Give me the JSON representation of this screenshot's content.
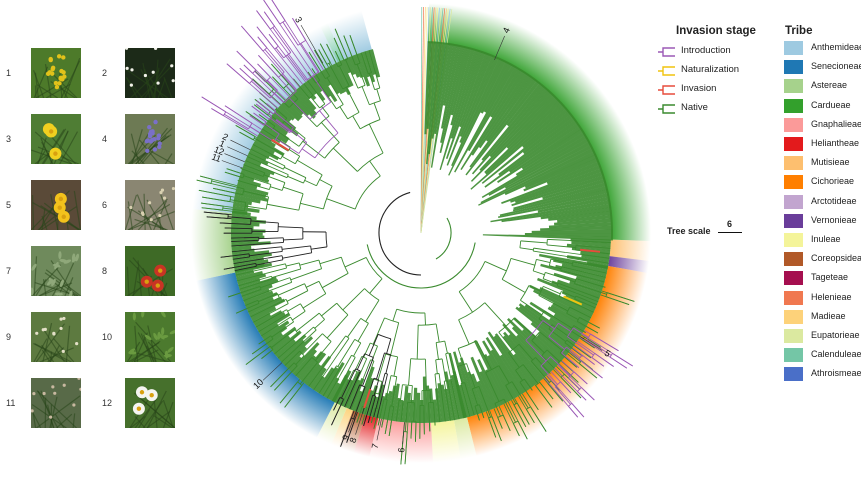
{
  "photos": [
    {
      "num": "1",
      "bg": "#4d7a2a",
      "flower": "#e2c21a",
      "kind": "spike"
    },
    {
      "num": "2",
      "bg": "#1c2a18",
      "flower": "#f2f2ea",
      "kind": "small"
    },
    {
      "num": "3",
      "bg": "#4f7d34",
      "flower": "#f0d020",
      "kind": "daisy"
    },
    {
      "num": "4",
      "bg": "#6d7a54",
      "flower": "#7a70c8",
      "kind": "spike"
    },
    {
      "num": "5",
      "bg": "#5a4a38",
      "flower": "#f2c21c",
      "kind": "daisy"
    },
    {
      "num": "6",
      "bg": "#8a8672",
      "flower": "#d8d0b0",
      "kind": "small"
    },
    {
      "num": "7",
      "bg": "#6f8a5c",
      "flower": "#8fa87a",
      "kind": "leaf"
    },
    {
      "num": "8",
      "bg": "#3e6a26",
      "flower": "#c83424",
      "kind": "daisy"
    },
    {
      "num": "9",
      "bg": "#5d7a40",
      "flower": "#e4e0c8",
      "kind": "small"
    },
    {
      "num": "10",
      "bg": "#4c7a2e",
      "flower": "#6a9a40",
      "kind": "leaf"
    },
    {
      "num": "11",
      "bg": "#586a48",
      "flower": "#c8b8a0",
      "kind": "small"
    },
    {
      "num": "12",
      "bg": "#46702c",
      "flower": "#f4f4f0",
      "kind": "daisy"
    }
  ],
  "tree_labels": [
    "4",
    "3",
    "2",
    "1",
    "12",
    "11",
    "5",
    "10",
    "9",
    "8",
    "7",
    "6"
  ],
  "invasion_legend": {
    "title": "Invasion stage",
    "items": [
      {
        "label": "Introduction",
        "color": "#9b59b6"
      },
      {
        "label": "Naturalization",
        "color": "#f1c40f"
      },
      {
        "label": "Invasion",
        "color": "#e74c3c"
      },
      {
        "label": "Native",
        "color": "#3a8a2e"
      }
    ]
  },
  "tribe_legend": {
    "title": "Tribe",
    "items": [
      {
        "label": "Anthemideae",
        "color": "#9ecae1"
      },
      {
        "label": "Senecioneae",
        "color": "#1f78b4"
      },
      {
        "label": "Astereae",
        "color": "#a6d28c"
      },
      {
        "label": "Cardueae",
        "color": "#33a02c"
      },
      {
        "label": "Gnaphalieae",
        "color": "#fb9a99"
      },
      {
        "label": "Heliantheae",
        "color": "#e31a1c"
      },
      {
        "label": "Mutisieae",
        "color": "#fdbf6f"
      },
      {
        "label": "Cichorieae",
        "color": "#ff7f00"
      },
      {
        "label": "Arctotideae",
        "color": "#c2a5cf"
      },
      {
        "label": "Vernonieae",
        "color": "#6a3d9a"
      },
      {
        "label": "Inuleae",
        "color": "#f4f49a"
      },
      {
        "label": "Coreopsideae",
        "color": "#b15928"
      },
      {
        "label": "Tageteae",
        "color": "#a50f4f"
      },
      {
        "label": "Helenieae",
        "color": "#f07850"
      },
      {
        "label": "Madieae",
        "color": "#fdd27a"
      },
      {
        "label": "Eupatorieae",
        "color": "#dbe9a0"
      },
      {
        "label": "Calenduleae",
        "color": "#74c6a6"
      },
      {
        "label": "Athroismeae",
        "color": "#4a6fc8"
      }
    ]
  },
  "scale": {
    "label": "Tree scale",
    "value": "6"
  }
}
